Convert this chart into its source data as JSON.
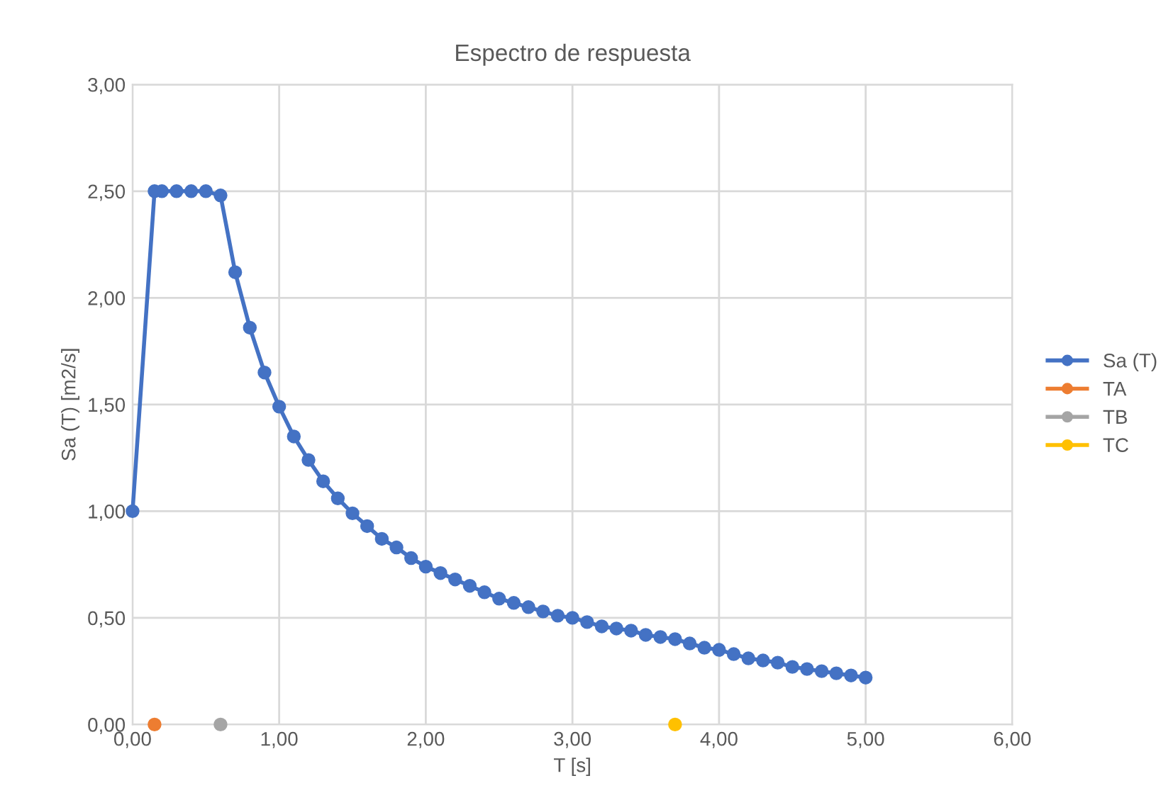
{
  "chart_data": {
    "type": "line",
    "title": "Espectro de respuesta",
    "xlabel": "T [s]",
    "ylabel": "Sa (T) [m2/s]",
    "xlim": [
      0,
      6
    ],
    "ylim": [
      0,
      3
    ],
    "xticks": [
      {
        "value": 0,
        "label": "0,00"
      },
      {
        "value": 1,
        "label": "1,00"
      },
      {
        "value": 2,
        "label": "2,00"
      },
      {
        "value": 3,
        "label": "3,00"
      },
      {
        "value": 4,
        "label": "4,00"
      },
      {
        "value": 5,
        "label": "5,00"
      },
      {
        "value": 6,
        "label": "6,00"
      }
    ],
    "yticks": [
      {
        "value": 0,
        "label": "0,00"
      },
      {
        "value": 0.5,
        "label": "0,50"
      },
      {
        "value": 1,
        "label": "1,00"
      },
      {
        "value": 1.5,
        "label": "1,50"
      },
      {
        "value": 2,
        "label": "2,00"
      },
      {
        "value": 2.5,
        "label": "2,50"
      },
      {
        "value": 3,
        "label": "3,00"
      }
    ],
    "grid": true,
    "legend": "right",
    "marker": "circle",
    "line_style": "solid",
    "series": [
      {
        "name": "Sa (T)",
        "color": "#4472c4",
        "x": [
          0,
          0.15,
          0.2,
          0.3,
          0.4,
          0.5,
          0.6,
          0.7,
          0.8,
          0.9,
          1.0,
          1.1,
          1.2,
          1.3,
          1.4,
          1.5,
          1.6,
          1.7,
          1.8,
          1.9,
          2.0,
          2.1,
          2.2,
          2.3,
          2.4,
          2.5,
          2.6,
          2.7,
          2.8,
          2.9,
          3.0,
          3.1,
          3.2,
          3.3,
          3.4,
          3.5,
          3.6,
          3.7,
          3.8,
          3.9,
          4.0,
          4.1,
          4.2,
          4.3,
          4.4,
          4.5,
          4.6,
          4.7,
          4.8,
          4.9,
          5.0
        ],
        "values": [
          1.0,
          2.5,
          2.5,
          2.5,
          2.5,
          2.5,
          2.48,
          2.12,
          1.86,
          1.65,
          1.49,
          1.35,
          1.24,
          1.14,
          1.06,
          0.99,
          0.93,
          0.87,
          0.83,
          0.78,
          0.74,
          0.71,
          0.68,
          0.65,
          0.62,
          0.59,
          0.57,
          0.55,
          0.53,
          0.51,
          0.5,
          0.48,
          0.46,
          0.45,
          0.44,
          0.42,
          0.41,
          0.4,
          0.38,
          0.36,
          0.35,
          0.33,
          0.31,
          0.3,
          0.29,
          0.27,
          0.26,
          0.25,
          0.24,
          0.23,
          0.22
        ]
      },
      {
        "name": "TA",
        "color": "#ed7d31",
        "x": [
          0.15
        ],
        "values": [
          0
        ]
      },
      {
        "name": "TB",
        "color": "#a5a5a5",
        "x": [
          0.6
        ],
        "values": [
          0
        ]
      },
      {
        "name": "TC",
        "color": "#ffc000",
        "x": [
          3.7
        ],
        "values": [
          0
        ]
      }
    ]
  }
}
